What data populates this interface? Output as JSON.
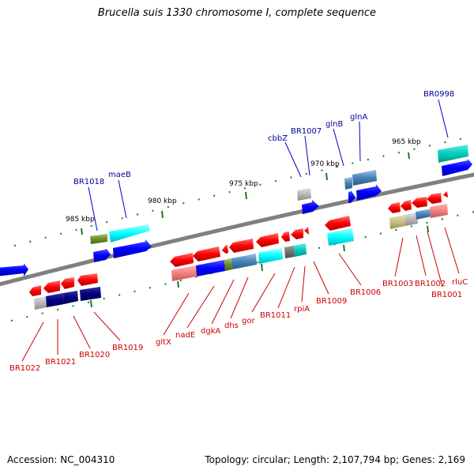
{
  "title": "Brucella suis 1330 chromosome I, complete sequence",
  "footer": {
    "accession": "Accession: NC_004310",
    "summary": "Topology: circular; Length: 2,107,794 bp; Genes: 2,169"
  },
  "scale_labels": [
    "985 kbp",
    "980 kbp",
    "975 kbp",
    "970 kbp",
    "965 kbp"
  ],
  "genes_top": [
    "BR1018",
    "maeB",
    "cbbZ",
    "BR1007",
    "glnB",
    "glnA",
    "BR0998"
  ],
  "genes_bottom": [
    "BR1022",
    "BR1021",
    "BR1020",
    "BR1019",
    "gltX",
    "nadE",
    "dgkA",
    "dhs",
    "gor",
    "BR1011",
    "rpiA",
    "BR1009",
    "BR1006",
    "BR1003",
    "BR1002",
    "BR1001",
    "rluC"
  ],
  "colors": {
    "backbone": "#808080",
    "forward_cds": "#0000ff",
    "reverse_cds": "#ff0000",
    "top_label": "#000099",
    "bottom_label": "#cc0000",
    "tick": "#1a7a1a"
  }
}
